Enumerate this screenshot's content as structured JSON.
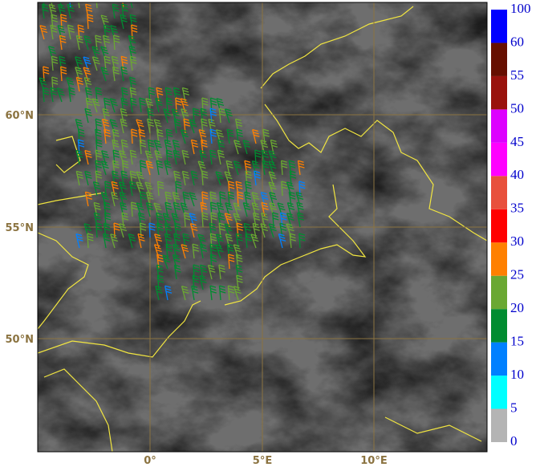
{
  "map": {
    "lat_labels": [
      "60°N",
      "55°N",
      "50°N"
    ],
    "lon_labels": [
      "0°",
      "5°E",
      "10°E"
    ]
  },
  "colorbar": {
    "levels": [
      0,
      5,
      10,
      15,
      20,
      25,
      30,
      35,
      40,
      45,
      50,
      55,
      60,
      100
    ],
    "colors": [
      "#b4b4b4",
      "#00ffff",
      "#0080ff",
      "#008c30",
      "#6aa832",
      "#ff8000",
      "#ff0000",
      "#e8503c",
      "#ff00ff",
      "#dd00ff",
      "#99120c",
      "#660f00",
      "#0000ff"
    ]
  }
}
